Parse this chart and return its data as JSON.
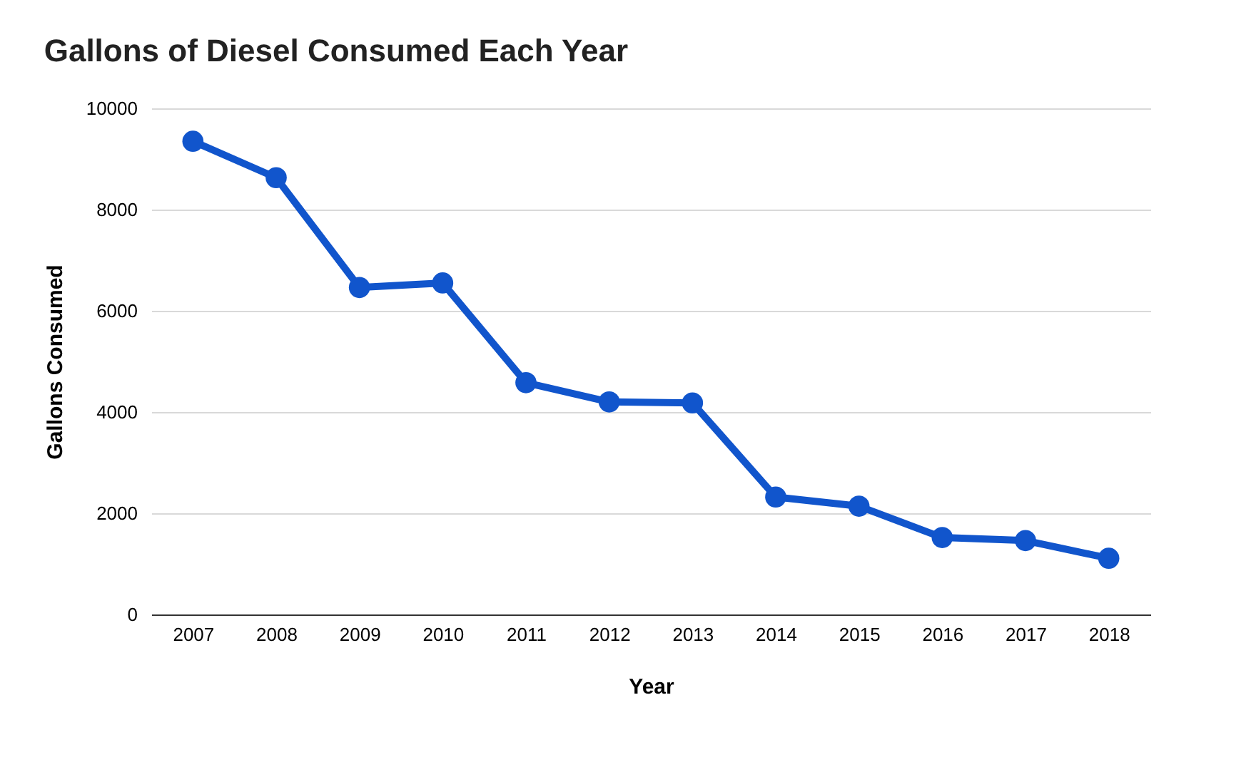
{
  "chart_data": {
    "type": "line",
    "title": "Gallons of Diesel Consumed Each Year",
    "xlabel": "Year",
    "ylabel": "Gallons Consumed",
    "categories": [
      "2007",
      "2008",
      "2009",
      "2010",
      "2011",
      "2012",
      "2013",
      "2014",
      "2015",
      "2016",
      "2017",
      "2018"
    ],
    "series": [
      {
        "color": "#1155cc",
        "values": [
          9350,
          8630,
          6460,
          6550,
          4580,
          4200,
          4180,
          2320,
          2140,
          1520,
          1460,
          1110
        ]
      }
    ],
    "ylim": [
      0,
      10000
    ],
    "yticks": [
      0,
      2000,
      4000,
      6000,
      8000,
      10000
    ],
    "grid": "y",
    "marker": "circle",
    "line_style": "solid",
    "legend": false
  }
}
